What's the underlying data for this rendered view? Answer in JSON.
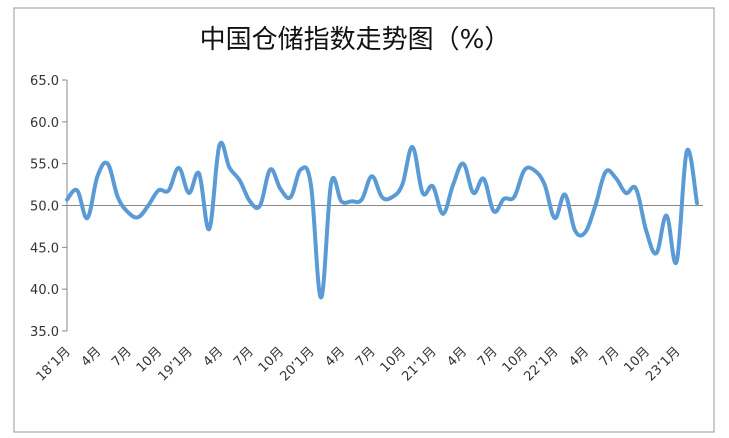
{
  "chart_data": {
    "type": "line",
    "title": "中国仓储指数走势图（%）",
    "categories": [
      "18’1月",
      null,
      null,
      "4月",
      null,
      null,
      "7月",
      null,
      null,
      "10月",
      null,
      null,
      "19’1月",
      null,
      null,
      "4月",
      null,
      null,
      "7月",
      null,
      null,
      "10月",
      null,
      null,
      "20’1月",
      null,
      null,
      "4月",
      null,
      null,
      "7月",
      null,
      null,
      "10月",
      null,
      null,
      "21’1月",
      null,
      null,
      "4月",
      null,
      null,
      "7月",
      null,
      null,
      "10月",
      null,
      null,
      "22’1月",
      null,
      null,
      "4月",
      null,
      null,
      "7月",
      null,
      null,
      "10月",
      null,
      null,
      "23’1月",
      null,
      null
    ],
    "series": [
      {
        "name": "中国仓储指数",
        "color": "#5b9bd5",
        "values": [
          50.7,
          51.8,
          48.5,
          53.5,
          55.0,
          51.0,
          49.2,
          48.6,
          50.0,
          51.8,
          51.8,
          54.5,
          51.5,
          53.8,
          47.2,
          57.2,
          54.5,
          53.0,
          50.5,
          50.0,
          54.3,
          52.0,
          51.0,
          54.3,
          52.5,
          39.0,
          52.7,
          50.5,
          50.5,
          50.7,
          53.5,
          51.0,
          51.0,
          52.5,
          57.0,
          51.5,
          52.3,
          49.0,
          52.5,
          55.0,
          51.5,
          53.2,
          49.3,
          50.8,
          51.0,
          54.2,
          54.2,
          52.5,
          48.5,
          51.3,
          47.0,
          46.8,
          50.0,
          54.0,
          53.3,
          51.5,
          52.0,
          47.0,
          44.3,
          48.8,
          43.3,
          56.5,
          50.3
        ]
      }
    ],
    "ylim": [
      35,
      65
    ],
    "yticks": [
      {
        "value": 35,
        "label": "35.0"
      },
      {
        "value": 40,
        "label": "40.0"
      },
      {
        "value": 45,
        "label": "45.0"
      },
      {
        "value": 50,
        "label": "50.0"
      },
      {
        "value": 55,
        "label": "55.0"
      },
      {
        "value": 60,
        "label": "60.0"
      },
      {
        "value": 65,
        "label": "65.0"
      }
    ],
    "x_axis_at": 50
  }
}
